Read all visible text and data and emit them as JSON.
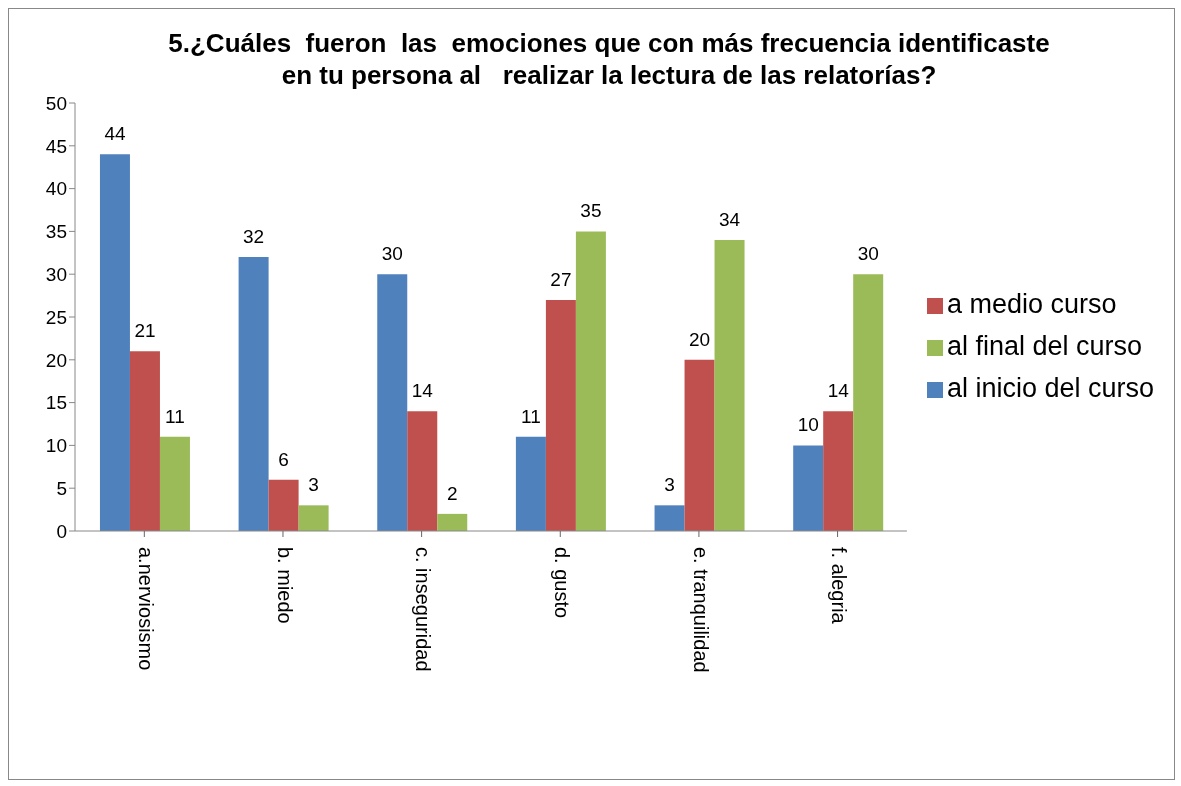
{
  "chart_data": {
    "type": "bar",
    "title": "5.¿Cuáles  fueron  las  emociones que con más frecuencia identificaste en tu persona al   realizar la lectura de las relatorías?",
    "categories": [
      "a.nerviosismo",
      "b. miedo",
      "c. inseguridad",
      "d. gusto",
      "e. tranquilidad",
      "f. alegria"
    ],
    "series": [
      {
        "name": "al inicio del curso",
        "color": "#4f81bd",
        "values": [
          44,
          32,
          30,
          11,
          3,
          10
        ]
      },
      {
        "name": "a medio curso",
        "color": "#c0504d",
        "values": [
          21,
          6,
          14,
          27,
          20,
          14
        ]
      },
      {
        "name": "al final del curso",
        "color": "#9bbb59",
        "values": [
          11,
          3,
          2,
          35,
          34,
          30
        ]
      }
    ],
    "ylim": [
      0,
      50
    ],
    "yticks": [
      0,
      5,
      10,
      15,
      20,
      25,
      30,
      35,
      40,
      45,
      50
    ],
    "grid": false,
    "legend": "right",
    "data_labels": true
  }
}
